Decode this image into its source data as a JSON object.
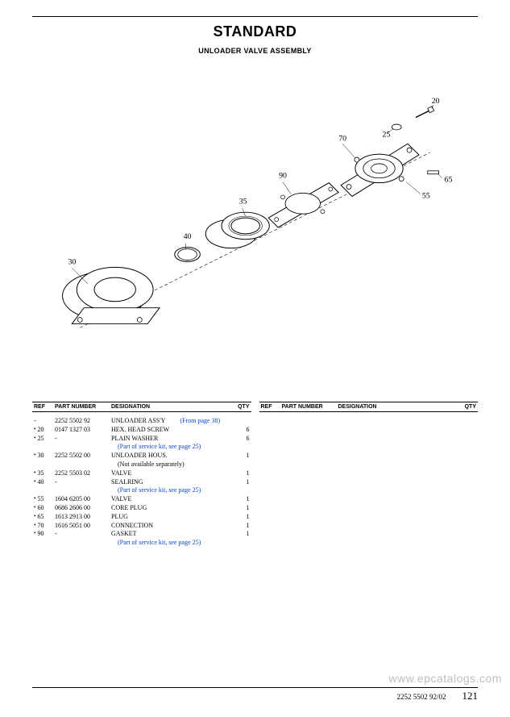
{
  "header": {
    "title": "STANDARD",
    "subtitle": "UNLOADER VALVE ASSEMBLY"
  },
  "diagram": {
    "callouts": [
      "20",
      "25",
      "30",
      "35",
      "40",
      "55",
      "65",
      "70",
      "90"
    ]
  },
  "table": {
    "headers": {
      "ref": "REF",
      "pn": "PART NUMBER",
      "des": "DESIGNATION",
      "qty": "QTY"
    },
    "rows": [
      {
        "ref": "-",
        "bullet": false,
        "pn": "2252 5502 92",
        "des": "UNLOADER ASS'Y",
        "from": "(From page 38)",
        "qty": ""
      },
      {
        "ref": "20",
        "bullet": true,
        "pn": "0147 1327 03",
        "des": "HEX. HEAD SCREW",
        "qty": "6"
      },
      {
        "ref": "25",
        "bullet": true,
        "pn": "-",
        "des": "PLAIN WASHER",
        "qty": "6",
        "note": "(Part of service kit, see page 25)"
      },
      {
        "ref": "30",
        "bullet": true,
        "pn": "2252 5502 00",
        "des": "UNLOADER HOUS.",
        "qty": "1",
        "noteBlack": "(Not available separately)"
      },
      {
        "ref": "35",
        "bullet": true,
        "pn": "2252 5503 02",
        "des": "VALVE",
        "qty": "1"
      },
      {
        "ref": "40",
        "bullet": true,
        "pn": "-",
        "des": "SEALRING",
        "qty": "1",
        "note": "(Part of service kit, see page 25)"
      },
      {
        "ref": "55",
        "bullet": true,
        "pn": "1604 6205 00",
        "des": "VALVE",
        "qty": "1"
      },
      {
        "ref": "60",
        "bullet": true,
        "pn": "0686 2606 00",
        "des": "CORE PLUG",
        "qty": "1"
      },
      {
        "ref": "65",
        "bullet": true,
        "pn": "1613 2913 00",
        "des": "PLUG",
        "qty": "1"
      },
      {
        "ref": "70",
        "bullet": true,
        "pn": "1616 5051 00",
        "des": "CONNECTION",
        "qty": "1"
      },
      {
        "ref": "90",
        "bullet": true,
        "pn": "-",
        "des": "GASKET",
        "qty": "1",
        "note": "(Part of service kit, see page 25)"
      }
    ]
  },
  "footer": {
    "doc": "2252 5502 92/02",
    "page": "121"
  },
  "watermark": "www.epcatalogs.com"
}
